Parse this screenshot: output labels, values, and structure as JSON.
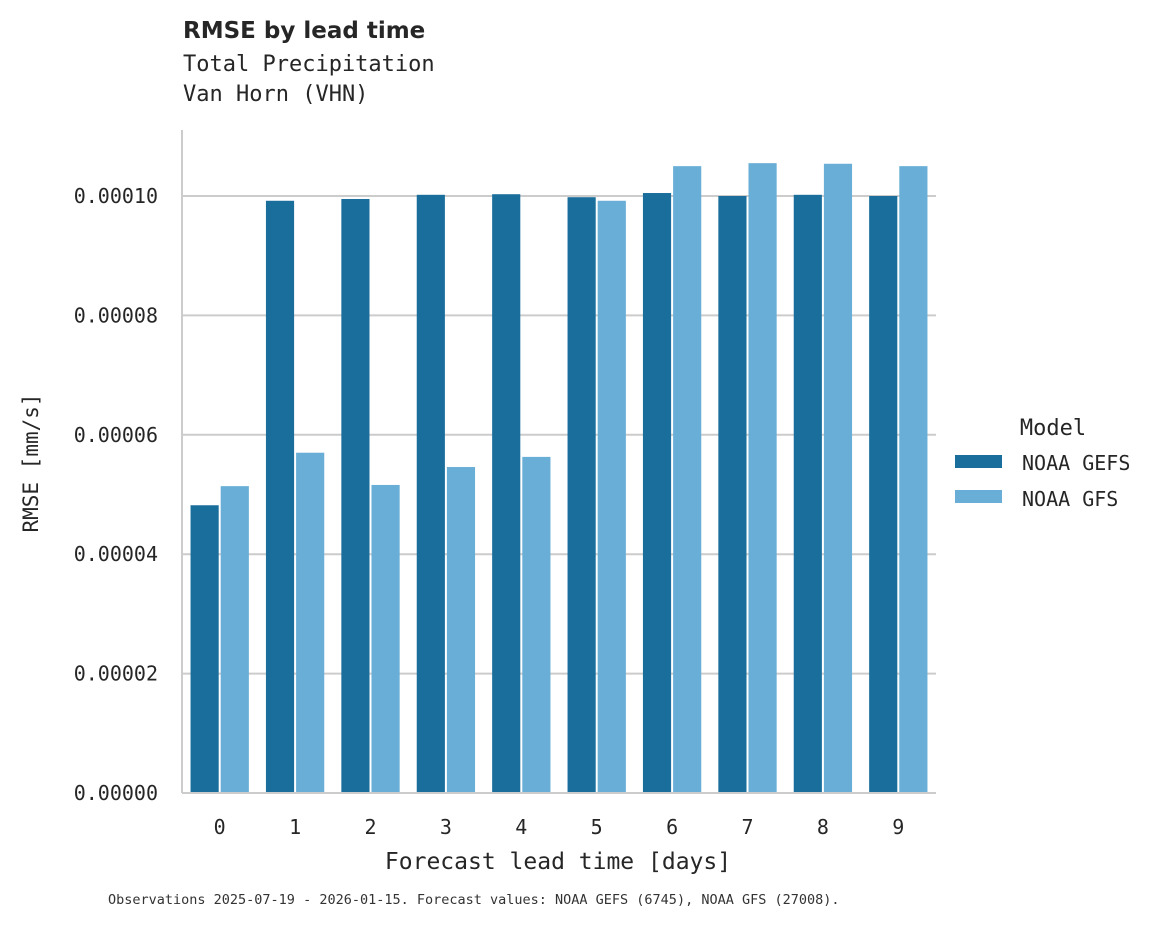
{
  "header": {
    "title": "RMSE by lead time",
    "subtitle_line1": "Total Precipitation",
    "subtitle_line2": "Van Horn (VHN)"
  },
  "footer": {
    "note": "Observations 2025-07-19 - 2026-01-15. Forecast values: NOAA GEFS (6745), NOAA GFS (27008)."
  },
  "colors": {
    "gefs": "#1a6e9c",
    "gfs": "#68aed6",
    "grid": "#cccccc",
    "axis": "#cccccc"
  },
  "chart_data": {
    "type": "bar",
    "title": "RMSE by lead time",
    "subtitle": "Total Precipitation / Van Horn (VHN)",
    "xlabel": "Forecast lead time [days]",
    "ylabel": "RMSE [mm/s]",
    "categories": [
      "0",
      "1",
      "2",
      "3",
      "4",
      "5",
      "6",
      "7",
      "8",
      "9"
    ],
    "ylim": [
      0,
      0.00011
    ],
    "yticks": [
      "0.00000",
      "0.00002",
      "0.00004",
      "0.00006",
      "0.00008",
      "0.00010"
    ],
    "ytick_values": [
      0,
      2e-05,
      4e-05,
      6e-05,
      8e-05,
      0.0001
    ],
    "grid": "horizontal",
    "legend_title": "Model",
    "legend_position": "right",
    "series": [
      {
        "name": "NOAA GEFS",
        "color": "#1a6e9c",
        "values": [
          4.82e-05,
          9.92e-05,
          9.95e-05,
          0.0001002,
          0.0001003,
          9.98e-05,
          0.0001005,
          0.0001,
          0.0001002,
          0.0001
        ]
      },
      {
        "name": "NOAA GFS",
        "color": "#68aed6",
        "values": [
          5.14e-05,
          5.7e-05,
          5.16e-05,
          5.46e-05,
          5.63e-05,
          9.92e-05,
          0.000105,
          0.0001055,
          0.0001054,
          0.000105
        ]
      }
    ]
  }
}
